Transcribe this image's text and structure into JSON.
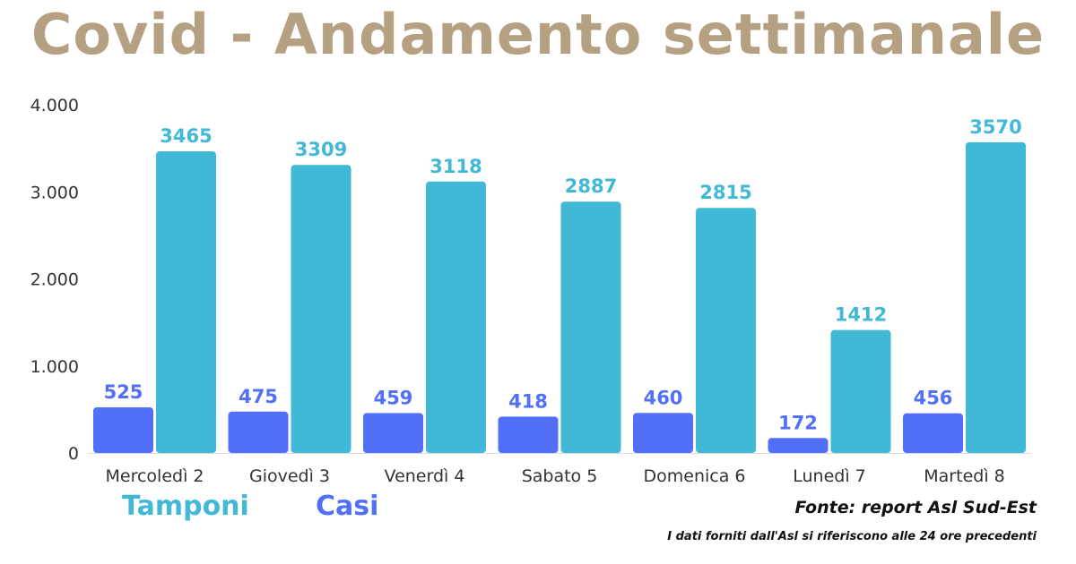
{
  "title": "Covid - Andamento settimanale",
  "legend": [
    {
      "label": "Tamponi",
      "color": "#41b8d5"
    },
    {
      "label": "Casi",
      "color": "#5170f7"
    }
  ],
  "source": "Fonte: report Asl Sud-Est",
  "note": "I dati forniti dall'Asl si riferiscono alle 24 ore precedenti",
  "chart_data": {
    "type": "bar",
    "title": "Covid - Andamento settimanale",
    "categories": [
      "Mercoledì 2",
      "Giovedì 3",
      "Venerdì 4",
      "Sabato 5",
      "Domenica 6",
      "Lunedì 7",
      "Martedì 8"
    ],
    "series": [
      {
        "name": "Casi",
        "color": "#5170f7",
        "values": [
          525,
          475,
          459,
          418,
          460,
          172,
          456
        ]
      },
      {
        "name": "Tamponi",
        "color": "#41b8d5",
        "values": [
          3465,
          3309,
          3118,
          2887,
          2815,
          1412,
          3570
        ]
      }
    ],
    "ylim": [
      0,
      4000
    ],
    "yticks": [
      0,
      1000,
      2000,
      3000,
      4000
    ],
    "ytick_labels": [
      "0",
      "1.000",
      "2.000",
      "3.000",
      "4.000"
    ],
    "grid": false,
    "data_labels": true,
    "legend_position": "bottom-left"
  }
}
